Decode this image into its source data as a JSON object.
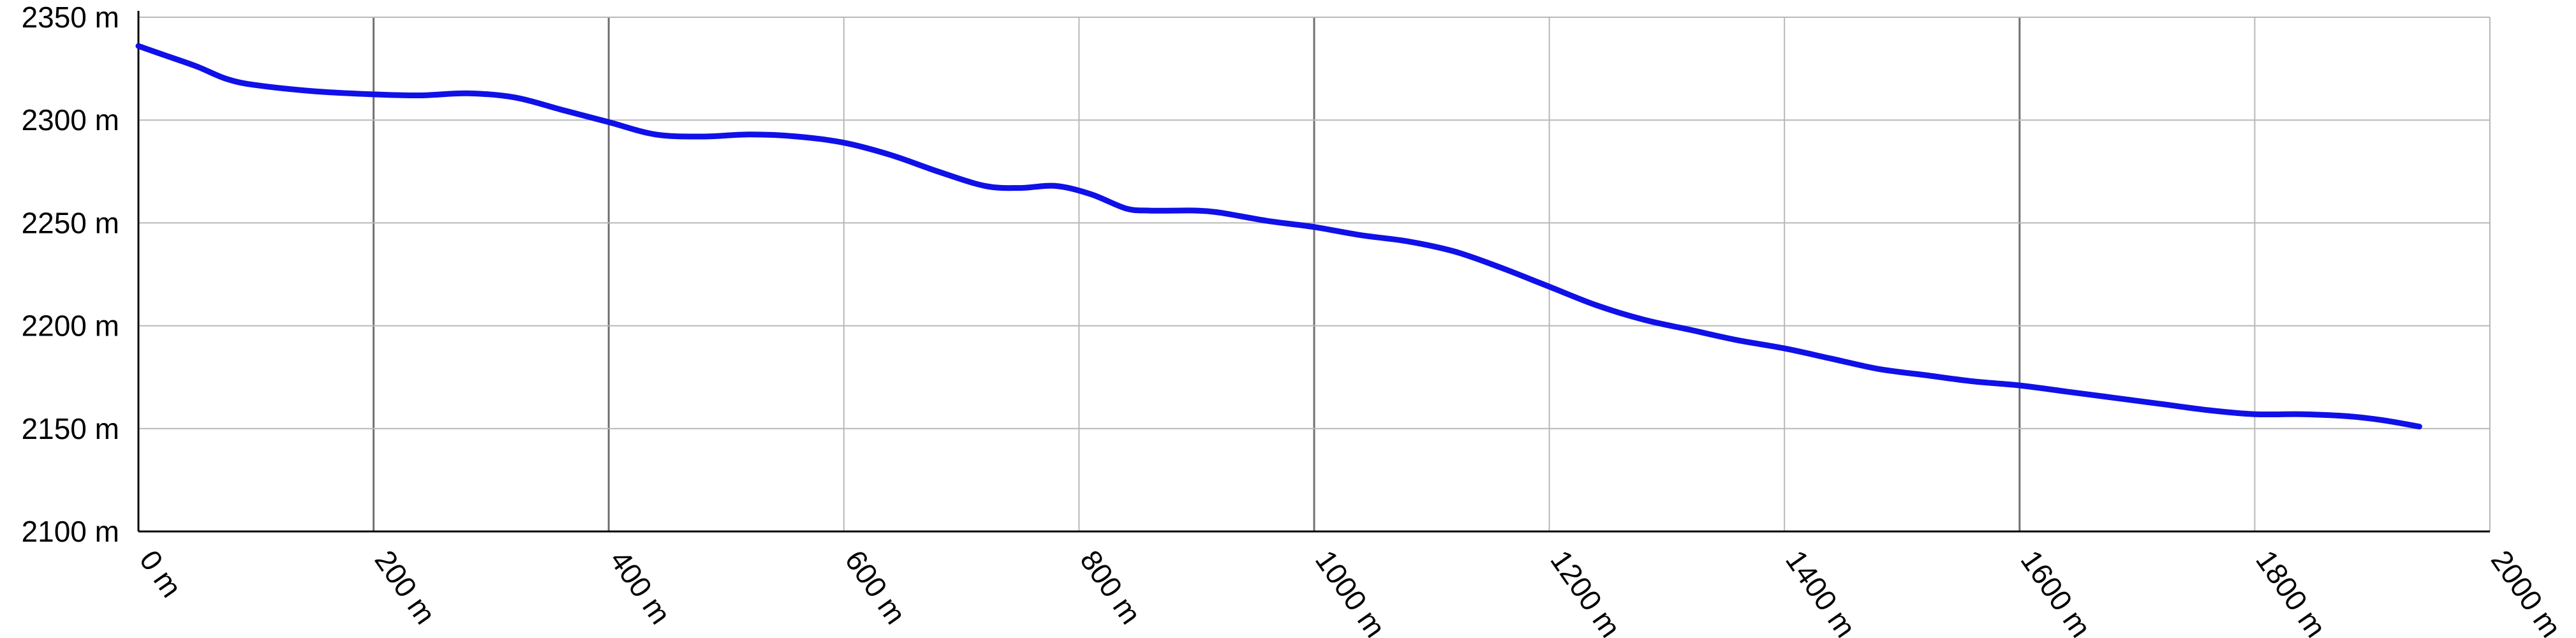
{
  "chart_data": {
    "type": "line",
    "title": "",
    "xlabel": "",
    "ylabel": "",
    "xlim": [
      0,
      2000
    ],
    "ylim": [
      2100,
      2350
    ],
    "grid": true,
    "x_ticks": [
      {
        "value": 0,
        "label": "0 m"
      },
      {
        "value": 200,
        "label": "200 m"
      },
      {
        "value": 400,
        "label": "400 m"
      },
      {
        "value": 600,
        "label": "600 m"
      },
      {
        "value": 800,
        "label": "800 m"
      },
      {
        "value": 1000,
        "label": "1000 m"
      },
      {
        "value": 1200,
        "label": "1200 m"
      },
      {
        "value": 1400,
        "label": "1400 m"
      },
      {
        "value": 1600,
        "label": "1600 m"
      },
      {
        "value": 1800,
        "label": "1800 m"
      },
      {
        "value": 2000,
        "label": "2000 m"
      }
    ],
    "y_ticks": [
      {
        "value": 2350,
        "label": "2350 m"
      },
      {
        "value": 2300,
        "label": "2300 m"
      },
      {
        "value": 2250,
        "label": "2250 m"
      },
      {
        "value": 2200,
        "label": "2200 m"
      },
      {
        "value": 2150,
        "label": "2150 m"
      },
      {
        "value": 2100,
        "label": "2100 m"
      }
    ],
    "emphasized_x_gridlines": [
      200,
      400,
      1000,
      1600
    ],
    "series": [
      {
        "color": "#1010e8",
        "x": [
          0,
          25,
          50,
          75,
          100,
          150,
          200,
          240,
          280,
          320,
          360,
          400,
          440,
          480,
          520,
          560,
          600,
          640,
          680,
          720,
          750,
          780,
          810,
          840,
          860,
          880,
          900,
          920,
          960,
          1000,
          1040,
          1080,
          1120,
          1160,
          1200,
          1240,
          1280,
          1320,
          1360,
          1400,
          1440,
          1480,
          1520,
          1560,
          1600,
          1640,
          1680,
          1720,
          1760,
          1800,
          1840,
          1880,
          1910,
          1940
        ],
        "y": [
          2336,
          2331,
          2326,
          2320,
          2317,
          2314,
          2312.5,
          2312,
          2313,
          2311,
          2305,
          2299,
          2293,
          2292,
          2293,
          2292,
          2289,
          2283,
          2275,
          2268,
          2267,
          2268,
          2264,
          2257,
          2256,
          2256,
          2256,
          2255,
          2251,
          2248,
          2244,
          2241,
          2236,
          2228,
          2219,
          2210,
          2203,
          2198,
          2193,
          2189,
          2184,
          2179,
          2176,
          2173,
          2171,
          2168,
          2165,
          2162,
          2159,
          2157,
          2157,
          2156,
          2154,
          2151
        ]
      }
    ]
  }
}
